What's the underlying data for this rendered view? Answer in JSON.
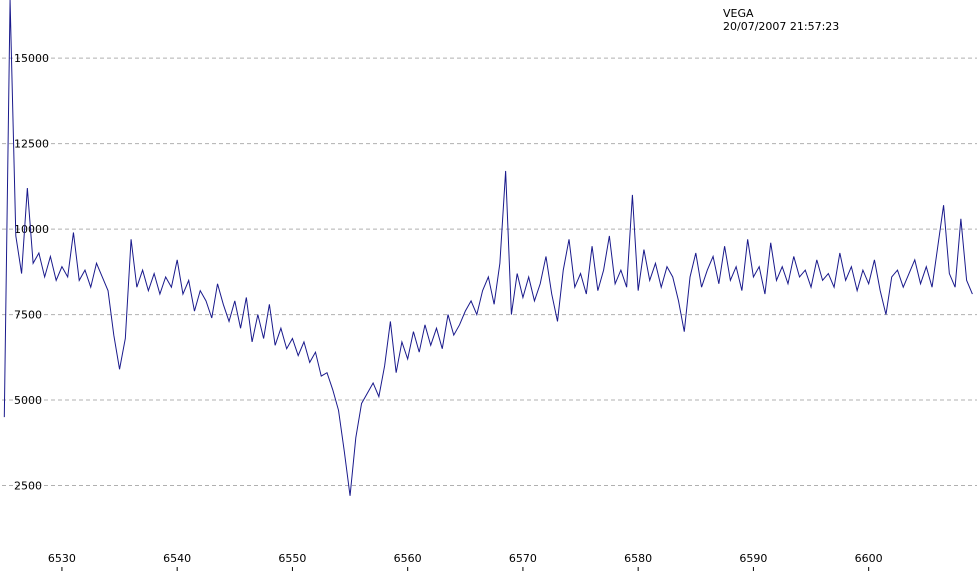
{
  "chart_data": {
    "type": "line",
    "title": "VEGA",
    "subtitle": "20/07/2007 21:57:23",
    "x": [
      6525.0,
      6525.5,
      6526.0,
      6526.5,
      6527.0,
      6527.5,
      6528.0,
      6528.5,
      6529.0,
      6529.5,
      6530.0,
      6530.5,
      6531.0,
      6531.5,
      6532.0,
      6532.5,
      6533.0,
      6533.5,
      6534.0,
      6534.5,
      6535.0,
      6535.5,
      6536.0,
      6536.5,
      6537.0,
      6537.5,
      6538.0,
      6538.5,
      6539.0,
      6539.5,
      6540.0,
      6540.5,
      6541.0,
      6541.5,
      6542.0,
      6542.5,
      6543.0,
      6543.5,
      6544.0,
      6544.5,
      6545.0,
      6545.5,
      6546.0,
      6546.5,
      6547.0,
      6547.5,
      6548.0,
      6548.5,
      6549.0,
      6549.5,
      6550.0,
      6550.5,
      6551.0,
      6551.5,
      6552.0,
      6552.5,
      6553.0,
      6553.5,
      6554.0,
      6554.5,
      6555.0,
      6555.5,
      6556.0,
      6556.5,
      6557.0,
      6557.5,
      6558.0,
      6558.5,
      6559.0,
      6559.5,
      6560.0,
      6560.5,
      6561.0,
      6561.5,
      6562.0,
      6562.5,
      6563.0,
      6563.5,
      6564.0,
      6564.5,
      6565.0,
      6565.5,
      6566.0,
      6566.5,
      6567.0,
      6567.5,
      6568.0,
      6568.5,
      6569.0,
      6569.5,
      6570.0,
      6570.5,
      6571.0,
      6571.5,
      6572.0,
      6572.5,
      6573.0,
      6573.5,
      6574.0,
      6574.5,
      6575.0,
      6575.5,
      6576.0,
      6576.5,
      6577.0,
      6577.5,
      6578.0,
      6578.5,
      6579.0,
      6579.5,
      6580.0,
      6580.5,
      6581.0,
      6581.5,
      6582.0,
      6582.5,
      6583.0,
      6583.5,
      6584.0,
      6584.5,
      6585.0,
      6585.5,
      6586.0,
      6586.5,
      6587.0,
      6587.5,
      6588.0,
      6588.5,
      6589.0,
      6589.5,
      6590.0,
      6590.5,
      6591.0,
      6591.5,
      6592.0,
      6592.5,
      6593.0,
      6593.5,
      6594.0,
      6594.5,
      6595.0,
      6595.5,
      6596.0,
      6596.5,
      6597.0,
      6597.5,
      6598.0,
      6598.5,
      6599.0,
      6599.5,
      6600.0,
      6600.5,
      6601.0,
      6601.5,
      6602.0,
      6602.5,
      6603.0,
      6603.5,
      6604.0,
      6604.5,
      6605.0,
      6605.5,
      6606.0,
      6606.5,
      6607.0,
      6607.5,
      6608.0,
      6608.5,
      6609.0
    ],
    "series": [
      {
        "color": "#1a1a8c",
        "values": [
          4500,
          16700,
          9800,
          8700,
          11200,
          9000,
          9300,
          8600,
          9200,
          8500,
          8900,
          8600,
          9900,
          8500,
          8800,
          8300,
          9000,
          8600,
          8200,
          6900,
          5900,
          6800,
          9700,
          8300,
          8800,
          8200,
          8700,
          8100,
          8600,
          8300,
          9100,
          8100,
          8500,
          7600,
          8200,
          7900,
          7400,
          8400,
          7800,
          7300,
          7900,
          7100,
          8000,
          6700,
          7500,
          6800,
          7800,
          6600,
          7100,
          6500,
          6800,
          6300,
          6700,
          6100,
          6400,
          5700,
          5800,
          5300,
          4700,
          3500,
          2200,
          3900,
          4900,
          5200,
          5500,
          5100,
          6000,
          7300,
          5800,
          6700,
          6200,
          7000,
          6400,
          7200,
          6600,
          7100,
          6500,
          7500,
          6900,
          7200,
          7600,
          7900,
          7500,
          8200,
          8600,
          7800,
          9000,
          11700,
          7500,
          8700,
          8000,
          8600,
          7900,
          8400,
          9200,
          8100,
          7300,
          8800,
          9700,
          8300,
          8700,
          8100,
          9500,
          8200,
          8800,
          9800,
          8400,
          8800,
          8300,
          11000,
          8200,
          9400,
          8500,
          9000,
          8300,
          8900,
          8600,
          7900,
          7000,
          8600,
          9300,
          8300,
          8800,
          9200,
          8400,
          9500,
          8500,
          8900,
          8200,
          9700,
          8600,
          8900,
          8100,
          9600,
          8500,
          8900,
          8400,
          9200,
          8600,
          8800,
          8300,
          9100,
          8500,
          8700,
          8300,
          9300,
          8500,
          8900,
          8200,
          8800,
          8400,
          9100,
          8200,
          7500,
          8600,
          8800,
          8300,
          8700,
          9100,
          8400,
          8900,
          8300,
          9500,
          10700,
          8700,
          8300,
          10300,
          8500,
          8100
        ]
      }
    ],
    "xlim": [
      6524.8,
      6609.4
    ],
    "ylim": [
      0,
      16700
    ],
    "xticks": [
      6530,
      6540,
      6550,
      6560,
      6570,
      6580,
      6590,
      6600
    ],
    "yticks": [
      2500,
      5000,
      7500,
      10000,
      12500,
      15000
    ],
    "grid": true
  }
}
